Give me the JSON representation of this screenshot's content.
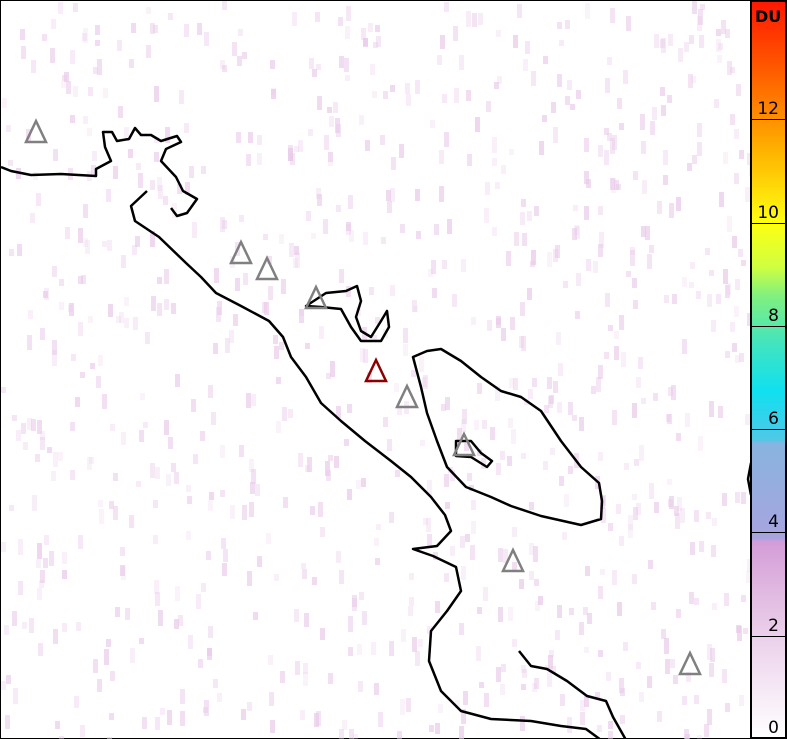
{
  "colorbar": {
    "unit": "DU",
    "ticks": [
      "0",
      "2",
      "4",
      "6",
      "8",
      "10",
      "12"
    ],
    "range": [
      0,
      14
    ]
  },
  "map": {
    "volcano_color_default": "#808080",
    "volcano_color_highlight": "#8b0000",
    "coastline_color": "#000000",
    "background_color": "#ffffff",
    "noise_color": "#e8c8e8"
  }
}
